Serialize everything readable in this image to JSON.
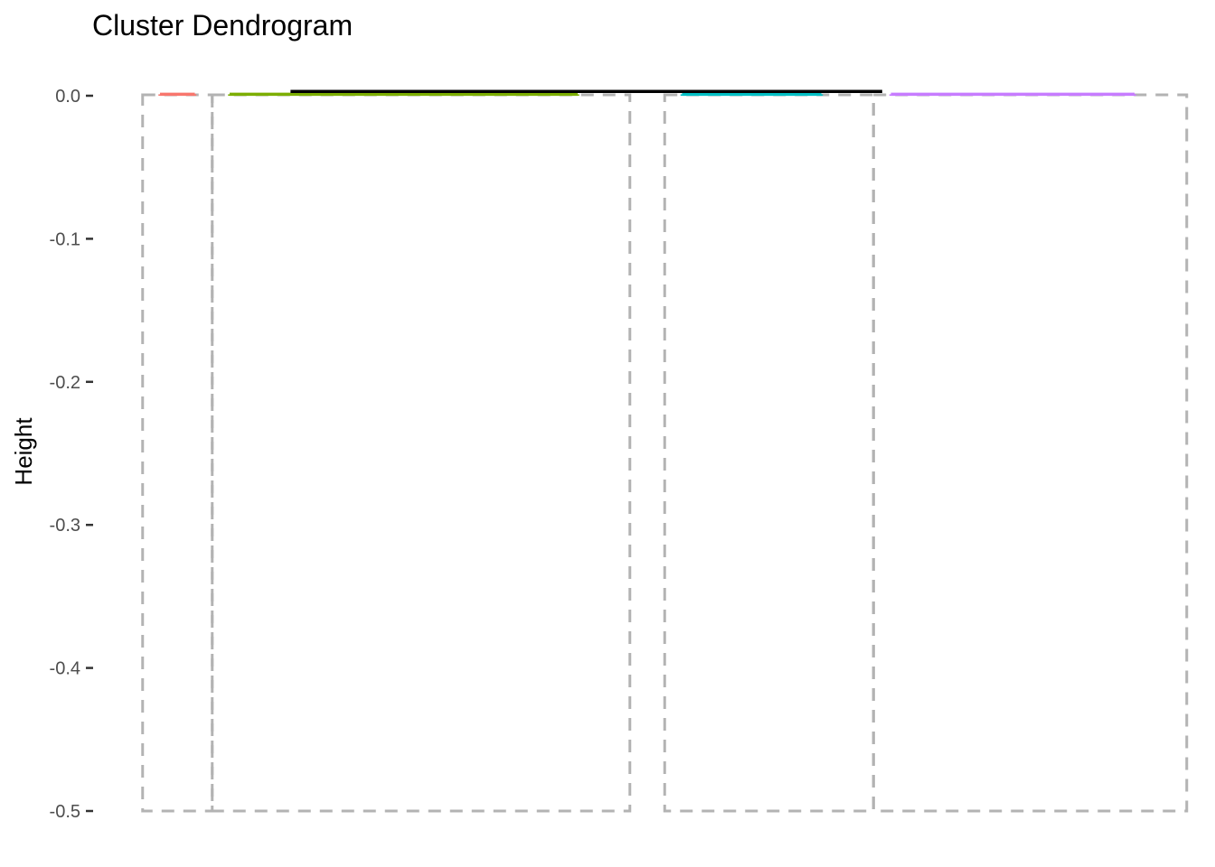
{
  "chart_data": {
    "type": "dendrogram",
    "title": "Cluster Dendrogram",
    "xlabel": "",
    "ylabel": "Height",
    "ylim": [
      -0.5,
      0.0
    ],
    "yticks": [
      {
        "value": 0.0,
        "label": "0.0"
      },
      {
        "value": -0.1,
        "label": "-0.1"
      },
      {
        "value": -0.2,
        "label": "-0.2"
      },
      {
        "value": -0.3,
        "label": "-0.3"
      },
      {
        "value": -0.4,
        "label": "-0.4"
      },
      {
        "value": -0.5,
        "label": "-0.5"
      }
    ],
    "grid": false,
    "legend": "none",
    "n_leaves": 30,
    "root_merge_height": 0.003,
    "clusters": [
      {
        "color": "#F8766D",
        "leaf_start": 1,
        "leaf_end": 2,
        "merge_height": 0.001
      },
      {
        "color": "#7CAE00",
        "leaf_start": 3,
        "leaf_end": 13,
        "merge_height": 0.001
      },
      {
        "color": "#00BFC4",
        "leaf_start": 16,
        "leaf_end": 20,
        "merge_height": 0.001
      },
      {
        "color": "#C77CFF",
        "leaf_start": 22,
        "leaf_end": 29,
        "merge_height": 0.001
      }
    ],
    "rect_boxes": [
      {
        "leaf_start": 1,
        "leaf_end": 2
      },
      {
        "leaf_start": 3,
        "leaf_end": 14
      },
      {
        "leaf_start": 16,
        "leaf_end": 21
      },
      {
        "leaf_start": 22,
        "leaf_end": 30
      }
    ]
  }
}
